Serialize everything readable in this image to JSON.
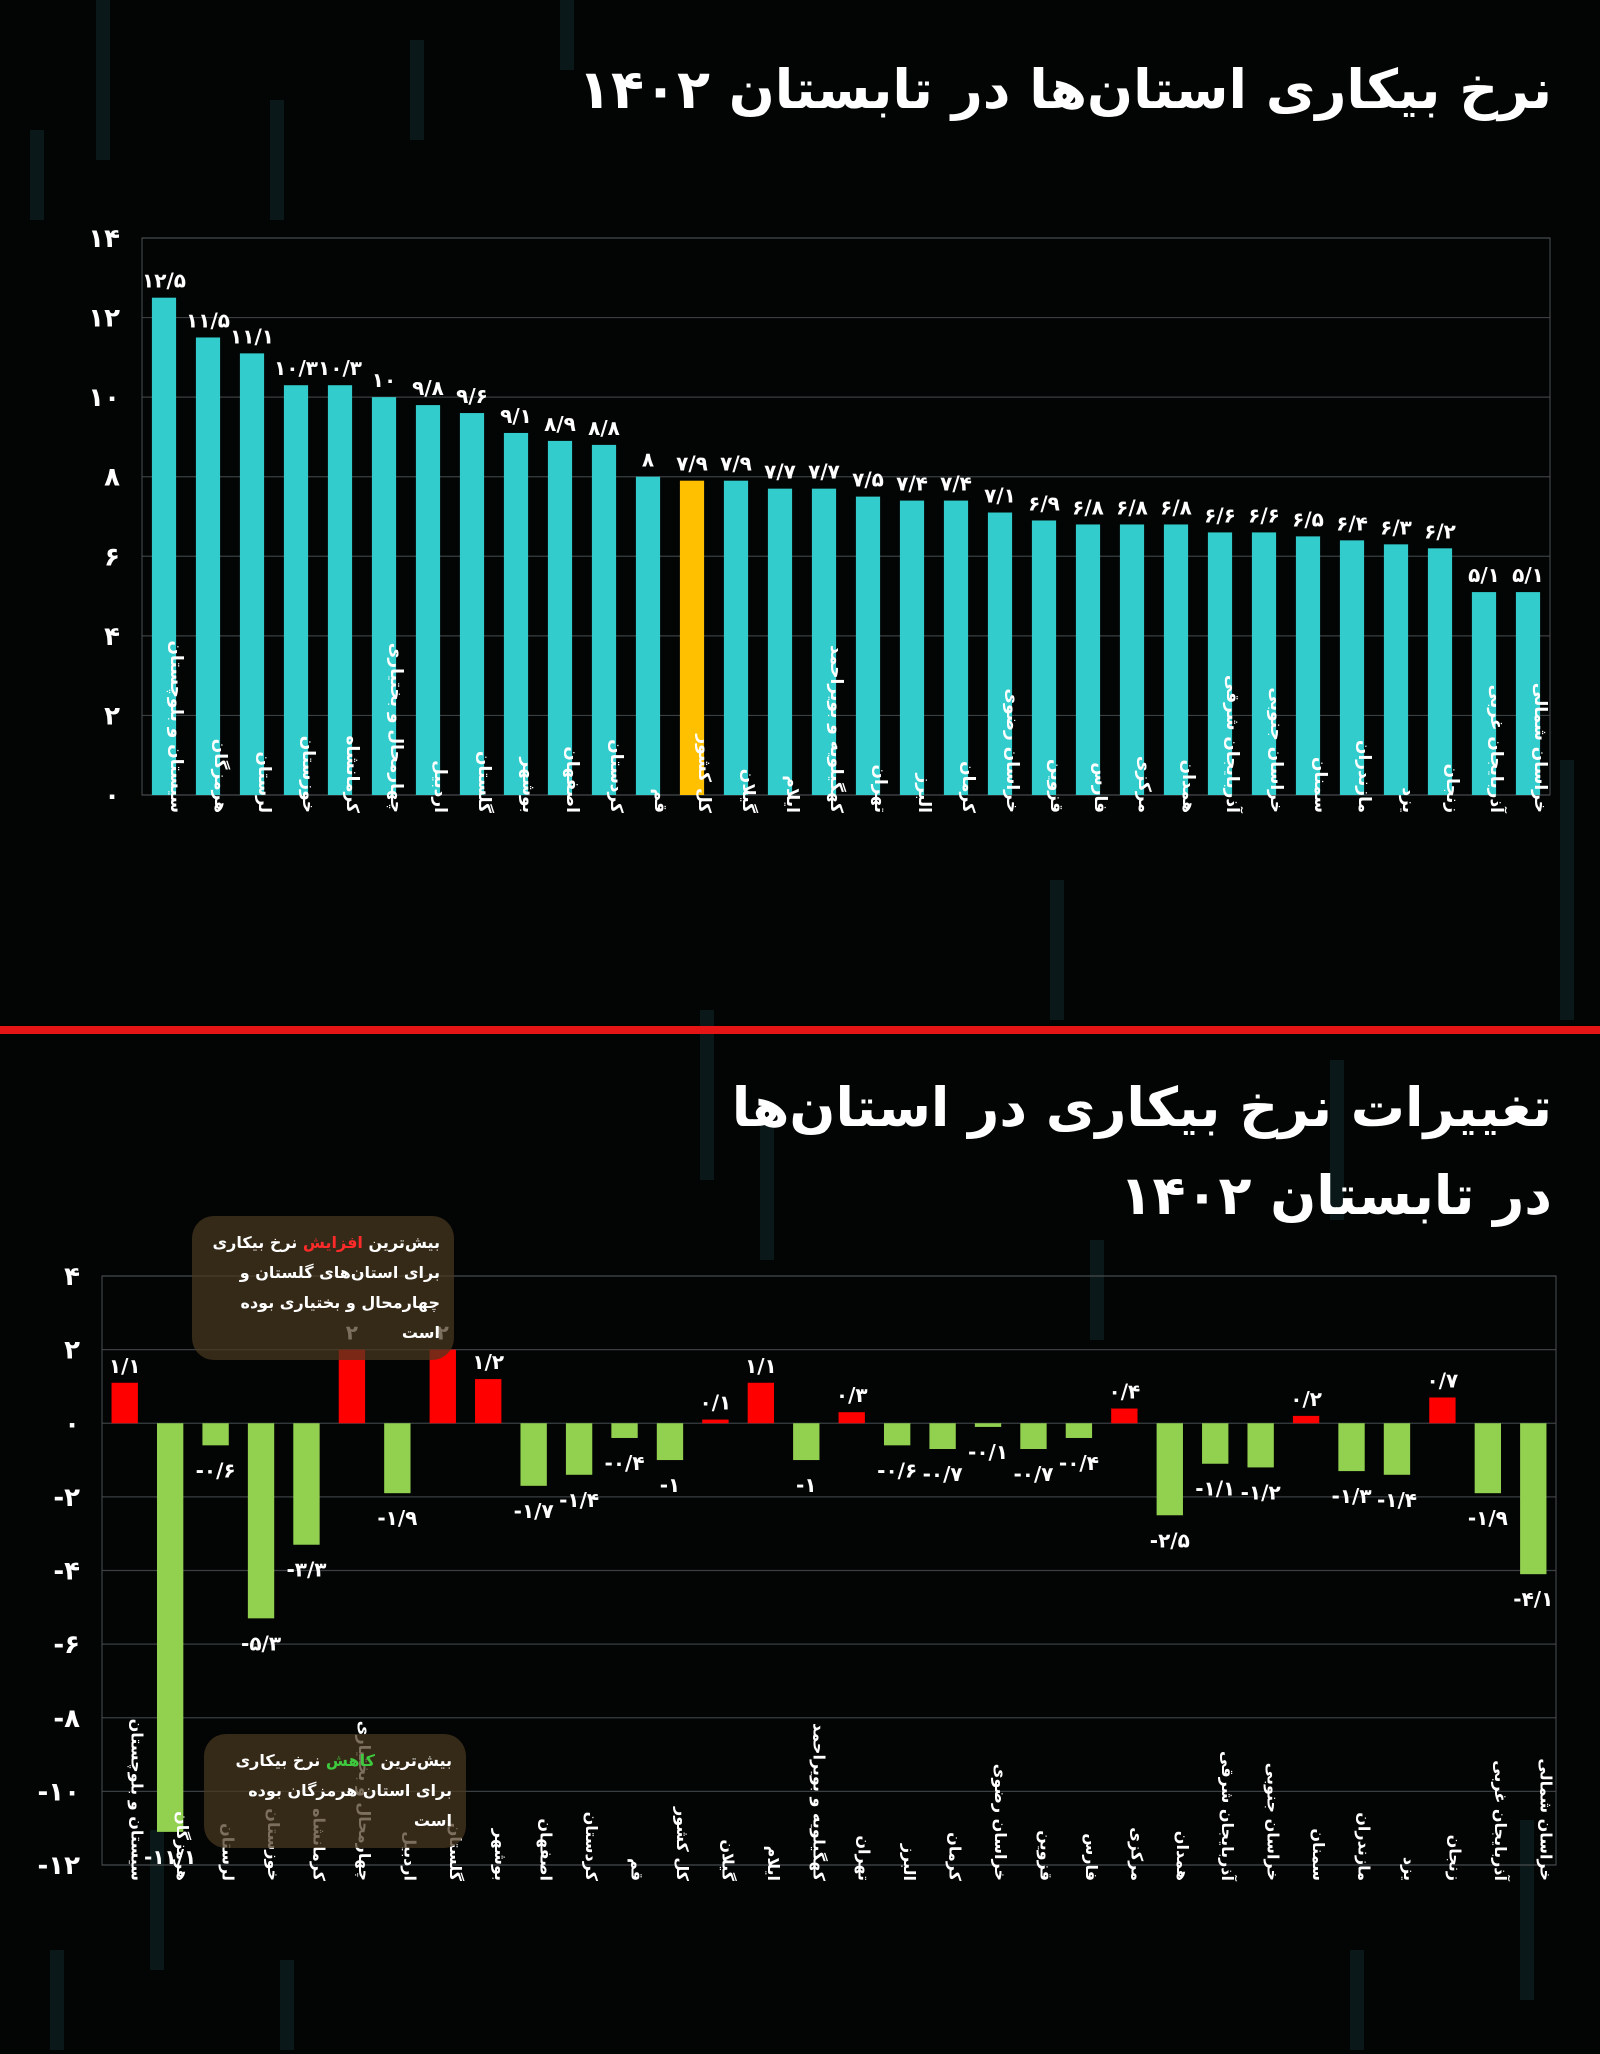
{
  "colors": {
    "background": "#030404",
    "bar_teal": "#33cccc",
    "bar_national": "#ffc000",
    "bar_increase": "#ff0000",
    "bar_decrease": "#92d050",
    "divider": "#e51515"
  },
  "panel1": {
    "title": "نرخ بیکاری استان‌ها در تابستان ۱۴۰۲"
  },
  "panel2": {
    "title_line1": "تغییرات نرخ بیکاری در استان‌ها",
    "title_line2": "در تابستان ۱۴۰۲",
    "note_increase": {
      "before": "بیش‌ترین ",
      "highlight": "افزایش",
      "after": " نرخ بیکاری برای استان‌های گلستان و چهارمحال و بختیاری بوده است"
    },
    "note_decrease": {
      "before": "بیش‌ترین ",
      "highlight": "کاهش",
      "after": " نرخ بیکاری برای استان هرمزگان بوده است"
    }
  },
  "chart_data": [
    {
      "type": "bar",
      "categories": [
        "سیستان و بلوچستان",
        "هرمزگان",
        "لرستان",
        "خوزستان",
        "کرمانشاه",
        "چهارمحال و بختیاری",
        "اردبیل",
        "گلستان",
        "بوشهر",
        "اصفهان",
        "کردستان",
        "قم",
        "کل کشور",
        "گیلان",
        "ایلام",
        "کهگیلویه و بویراحمد",
        "تهران",
        "البرز",
        "کرمان",
        "خراسان رضوی",
        "قزوین",
        "فارس",
        "مرکزی",
        "همدان",
        "آذربایجان شرقی",
        "خراسان جنوبی",
        "سمنان",
        "مازندران",
        "یزد",
        "زنجان",
        "آذربایجان غربی",
        "خراسان شمالی"
      ],
      "values": [
        12.5,
        11.5,
        11.1,
        10.3,
        10.3,
        10,
        9.8,
        9.6,
        9.1,
        8.9,
        8.8,
        8,
        7.9,
        7.9,
        7.7,
        7.7,
        7.5,
        7.4,
        7.4,
        7.1,
        6.9,
        6.8,
        6.8,
        6.8,
        6.6,
        6.6,
        6.5,
        6.4,
        6.3,
        6.2,
        5.1,
        5.1
      ],
      "data_labels": [
        "۱۲/۵",
        "۱۱/۵",
        "۱۱/۱",
        "۱۰/۳",
        "۱۰/۳",
        "۱۰",
        "۹/۸",
        "۹/۶",
        "۹/۱",
        "۸/۹",
        "۸/۸",
        "۸",
        "۷/۹",
        "۷/۹",
        "۷/۷",
        "۷/۷",
        "۷/۵",
        "۷/۴",
        "۷/۴",
        "۷/۱",
        "۶/۹",
        "۶/۸",
        "۶/۸",
        "۶/۸",
        "۶/۶",
        "۶/۶",
        "۶/۵",
        "۶/۴",
        "۶/۳",
        "۶/۲",
        "۵/۱",
        "۵/۱"
      ],
      "highlight_category": "کل کشور",
      "ylim": [
        0,
        14
      ],
      "yticks": [
        0,
        2,
        4,
        6,
        8,
        10,
        12,
        14
      ],
      "ytick_labels": [
        "۰",
        "۲",
        "۴",
        "۶",
        "۸",
        "۱۰",
        "۱۲",
        "۱۴"
      ],
      "grid": true
    },
    {
      "type": "bar",
      "categories": [
        "سیستان و بلوچستان",
        "هرمزگان",
        "لرستان",
        "خوزستان",
        "کرمانشاه",
        "چهارمحال و بختیاری",
        "اردبیل",
        "گلستان",
        "بوشهر",
        "اصفهان",
        "کردستان",
        "قم",
        "کل کشور",
        "گیلان",
        "ایلام",
        "کهگیلویه و بویراحمد",
        "تهران",
        "البرز",
        "کرمان",
        "خراسان رضوی",
        "قزوین",
        "فارس",
        "مرکزی",
        "همدان",
        "آذربایجان شرقی",
        "خراسان جنوبی",
        "سمنان",
        "مازندران",
        "یزد",
        "زنجان",
        "آذربایجان غربی",
        "خراسان شمالی"
      ],
      "values": [
        1.1,
        -11.1,
        -0.6,
        -5.3,
        -3.3,
        2,
        -1.9,
        2,
        1.2,
        -1.7,
        -1.4,
        -0.4,
        -1,
        0.1,
        1.1,
        -1,
        0.3,
        -0.6,
        -0.7,
        -0.1,
        -0.7,
        -0.4,
        0.4,
        -2.5,
        -1.1,
        -1.2,
        0.2,
        -1.3,
        -1.4,
        0.7,
        -1.9,
        -4.1
      ],
      "data_labels": [
        "۱/۱",
        "-۱۱/۱",
        "-۰/۶",
        "-۵/۳",
        "-۳/۳",
        "۲",
        "-۱/۹",
        "۲",
        "۱/۲",
        "-۱/۷",
        "-۱/۴",
        "-۰/۴",
        "-۱",
        "۰/۱",
        "۱/۱",
        "-۱",
        "۰/۳",
        "-۰/۶",
        "-۰/۷",
        "-۰/۱",
        "-۰/۷",
        "-۰/۴",
        "۰/۴",
        "-۲/۵",
        "-۱/۱",
        "-۱/۲",
        "۰/۲",
        "-۱/۳",
        "-۱/۴",
        "۰/۷",
        "-۱/۹",
        "-۴/۱"
      ],
      "ylim": [
        -12,
        4
      ],
      "yticks": [
        -12,
        -10,
        -8,
        -6,
        -4,
        -2,
        0,
        2,
        4
      ],
      "ytick_labels": [
        "-۱۲",
        "-۱۰",
        "-۸",
        "-۶",
        "-۴",
        "-۲",
        "۰",
        "۲",
        "۴"
      ],
      "grid": true
    }
  ]
}
